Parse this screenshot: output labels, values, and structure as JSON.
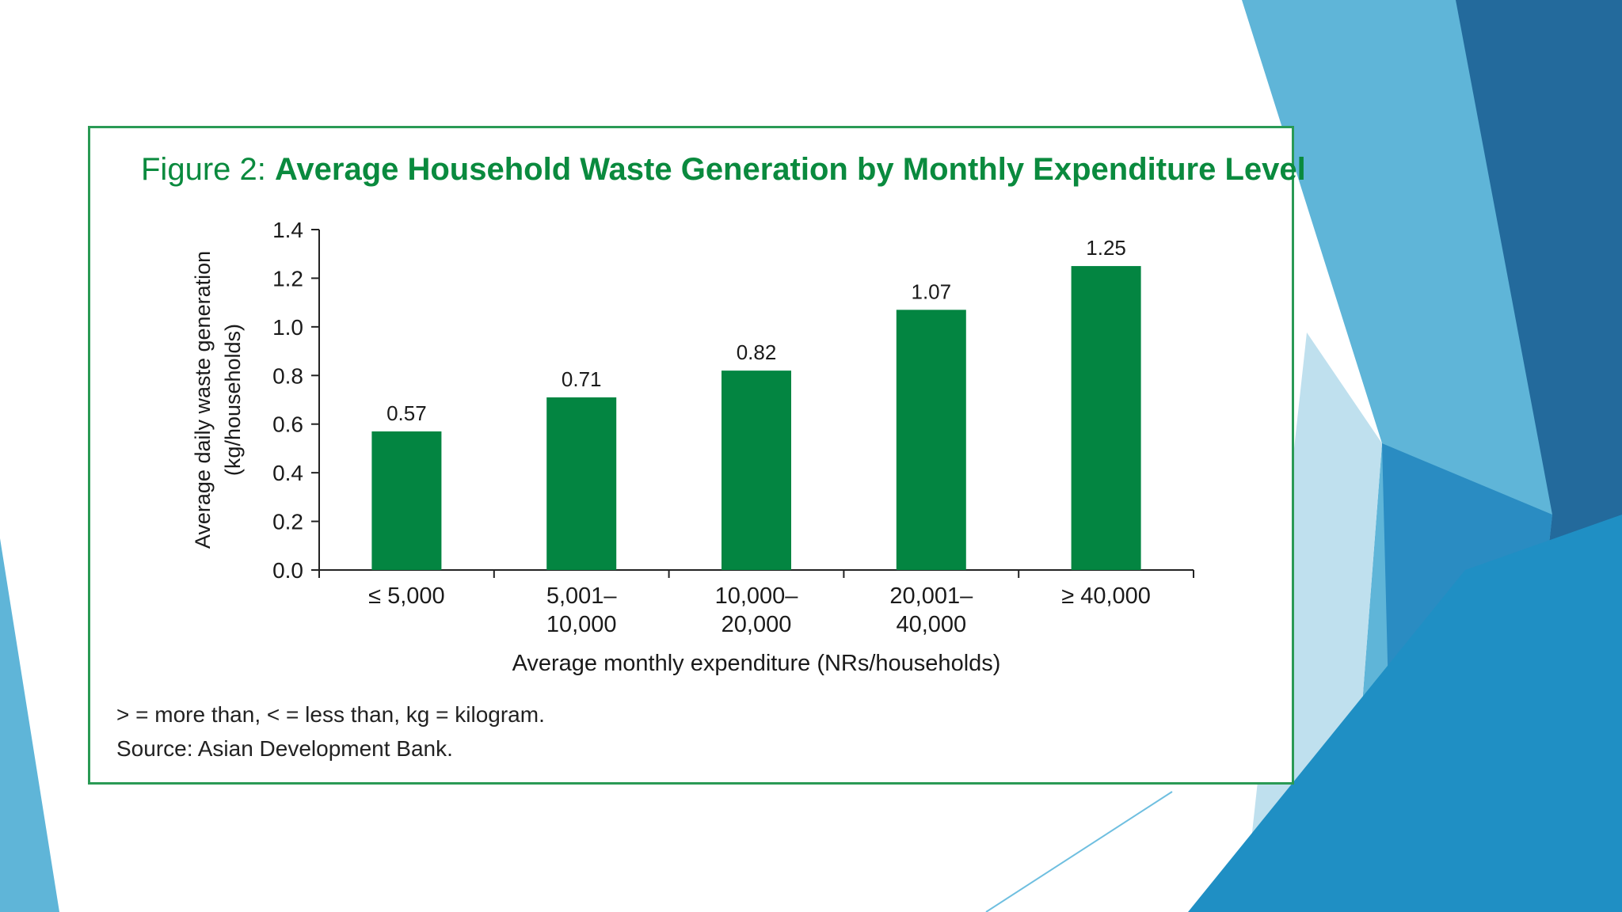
{
  "figure": {
    "label": "Figure 2:",
    "title": "Average Household Waste Generation by Monthly Expenditure Level",
    "notes": [
      "> = more than, < = less than, kg = kilogram.",
      "Source: Asian Development Bank."
    ]
  },
  "colors": {
    "bar": "#038541",
    "accent": "#0a8a3e",
    "frame": "#2a9a55",
    "bg_blue": "#1f8fc4",
    "bg_dark": "#236a9c"
  },
  "chart_data": {
    "type": "bar",
    "categories": [
      [
        "≤ 5,000"
      ],
      [
        "5,001–",
        "10,000"
      ],
      [
        "10,000–",
        "20,000"
      ],
      [
        "20,001–",
        "40,000"
      ],
      [
        "≥ 40,000"
      ]
    ],
    "values": [
      0.57,
      0.71,
      0.82,
      1.07,
      1.25
    ],
    "value_labels": [
      "0.57",
      "0.71",
      "0.82",
      "1.07",
      "1.25"
    ],
    "ylim": [
      0,
      1.4
    ],
    "yticks": [
      "0.0",
      "0.2",
      "0.4",
      "0.6",
      "0.8",
      "1.0",
      "1.2",
      "1.4"
    ],
    "ylabel": [
      "Average daily waste generation",
      "(kg/households)"
    ],
    "xlabel": "Average monthly expenditure (NRs/households)",
    "grid": false,
    "legend": "none"
  }
}
